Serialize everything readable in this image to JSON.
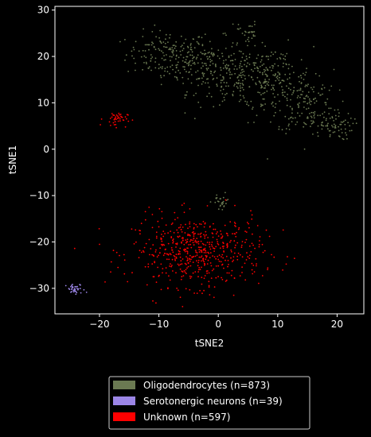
{
  "chart_data": {
    "type": "scatter",
    "xlabel": "tSNE2",
    "ylabel": "tSNE1",
    "xlim": [
      -27.5,
      24.5
    ],
    "ylim": [
      -35.5,
      30.8
    ],
    "x_ticks": [
      -20,
      -10,
      0,
      10,
      20
    ],
    "y_ticks": [
      -30,
      -20,
      -10,
      0,
      10,
      20,
      30
    ],
    "x_tick_labels": [
      "−20",
      "−10",
      "0",
      "10",
      "20"
    ],
    "y_tick_labels": [
      "−30",
      "−20",
      "−10",
      "0",
      "10",
      "20",
      "30"
    ],
    "grid": false,
    "legend_position": "below",
    "series": [
      {
        "name": "Oligodendrocytes (n=873)",
        "color": "#6b7a52",
        "count": 873,
        "clusters": [
          {
            "cx": -8.5,
            "cy": 20.5,
            "sx": 3.5,
            "sy": 2.5,
            "w": 0.18
          },
          {
            "cx": -2.0,
            "cy": 18.0,
            "sx": 3.5,
            "sy": 3.0,
            "w": 0.17
          },
          {
            "cx": 4.0,
            "cy": 15.5,
            "sx": 3.5,
            "sy": 3.5,
            "w": 0.2
          },
          {
            "cx": 10.0,
            "cy": 14.0,
            "sx": 3.0,
            "sy": 4.0,
            "w": 0.18
          },
          {
            "cx": 15.0,
            "cy": 10.0,
            "sx": 2.5,
            "sy": 3.5,
            "w": 0.13
          },
          {
            "cx": 19.0,
            "cy": 5.0,
            "sx": 1.8,
            "sy": 1.5,
            "w": 0.08
          },
          {
            "cx": 5.0,
            "cy": 25.5,
            "sx": 0.8,
            "sy": 1.0,
            "w": 0.03
          },
          {
            "cx": 0.5,
            "cy": -11.5,
            "sx": 0.8,
            "sy": 1.0,
            "w": 0.03
          }
        ]
      },
      {
        "name": "Serotonergic neurons (n=39)",
        "color": "#9b85e6",
        "count": 39,
        "clusters": [
          {
            "cx": -24.0,
            "cy": -30.3,
            "sx": 0.8,
            "sy": 0.6,
            "w": 1.0
          }
        ]
      },
      {
        "name": "Unknown (n=597)",
        "color": "#ff0000",
        "count": 597,
        "clusters": [
          {
            "cx": -3.5,
            "cy": -22.0,
            "sx": 5.5,
            "sy": 3.8,
            "w": 0.93
          },
          {
            "cx": -17.3,
            "cy": 6.5,
            "sx": 1.0,
            "sy": 0.8,
            "w": 0.07
          }
        ]
      }
    ]
  }
}
